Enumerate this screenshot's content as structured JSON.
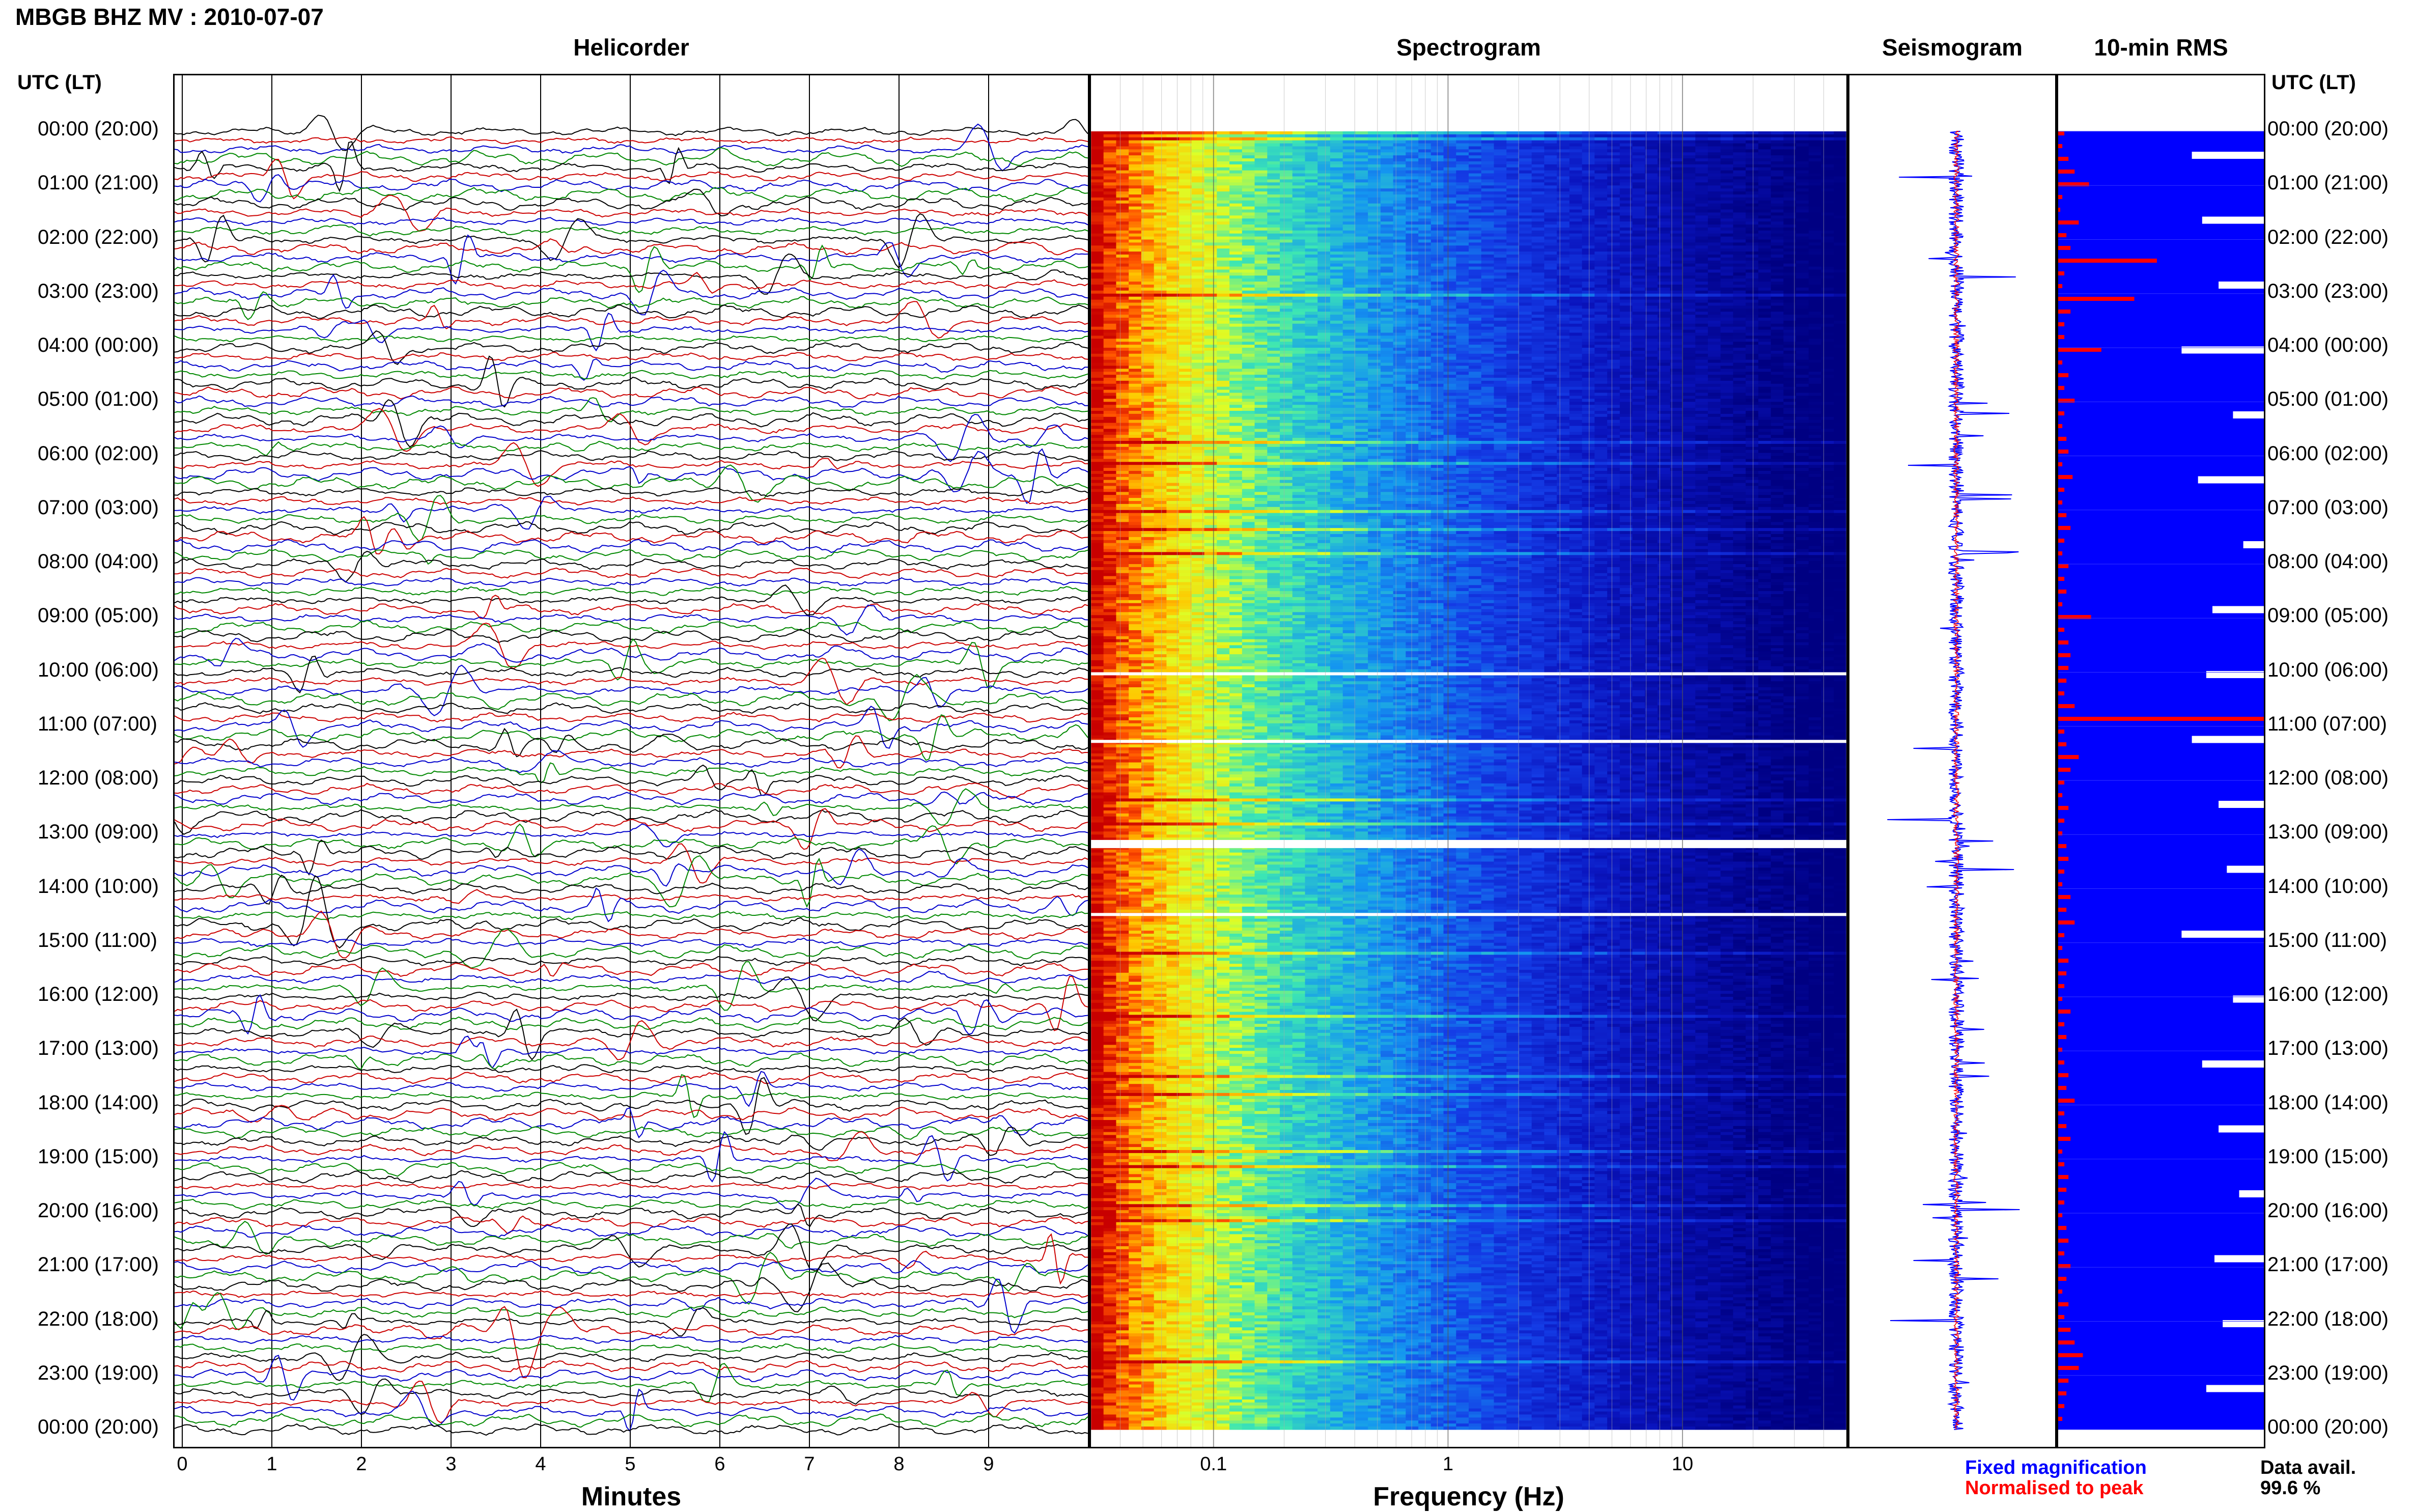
{
  "header": {
    "title": "MBGB BHZ MV : 2010-07-07"
  },
  "panels": {
    "helicorder": "Helicorder",
    "spectrogram": "Spectrogram",
    "seismogram": "Seismogram",
    "rms": "10-min RMS"
  },
  "axes": {
    "utc_header": "UTC (LT)",
    "minutes_label": "Minutes",
    "frequency_label": "Frequency (Hz)",
    "minute_ticks": [
      "0",
      "1",
      "2",
      "3",
      "4",
      "5",
      "6",
      "7",
      "8",
      "9"
    ],
    "frequency_ticks": [
      "0.1",
      "1",
      "10"
    ]
  },
  "time_labels": [
    "00:00 (20:00)",
    "01:00 (21:00)",
    "02:00 (22:00)",
    "03:00 (23:00)",
    "04:00 (00:00)",
    "05:00 (01:00)",
    "06:00 (02:00)",
    "07:00 (03:00)",
    "08:00 (04:00)",
    "09:00 (05:00)",
    "10:00 (06:00)",
    "11:00 (07:00)",
    "12:00 (08:00)",
    "13:00 (09:00)",
    "14:00 (10:00)",
    "15:00 (11:00)",
    "16:00 (12:00)",
    "17:00 (13:00)",
    "18:00 (14:00)",
    "19:00 (15:00)",
    "20:00 (16:00)",
    "21:00 (17:00)",
    "22:00 (18:00)",
    "23:00 (19:00)",
    "00:00 (20:00)"
  ],
  "legend": {
    "fixed": "Fixed magnification",
    "normalised": "Normalised to peak"
  },
  "availability": {
    "label": "Data avail.",
    "value": "99.6 %"
  },
  "colors": {
    "trace_cycle": [
      "#000000",
      "#cc0000",
      "#0000cc",
      "#008800"
    ],
    "spectro_low": "#00007f",
    "rms_bar": "#0000ff",
    "rms_peak": "#ff0000"
  },
  "rms_peak_levels": [
    0.03,
    0.02,
    0.05,
    0.08,
    0.15,
    0.02,
    0.01,
    0.1,
    0.04,
    0.06,
    0.48,
    0.03,
    0.02,
    0.37,
    0.06,
    0.03,
    0.03,
    0.21,
    0.02,
    0.05,
    0.03,
    0.08,
    0.03,
    0.02,
    0.04,
    0.05,
    0.02,
    0.07,
    0.03,
    0.02,
    0.04,
    0.06,
    0.03,
    0.02,
    0.05,
    0.03,
    0.04,
    0.02,
    0.16,
    0.03,
    0.05,
    0.06,
    0.05,
    0.04,
    0.03,
    0.08,
    1.0,
    0.03,
    0.04,
    0.1,
    0.06,
    0.03,
    0.02,
    0.05,
    0.03,
    0.02,
    0.04,
    0.05,
    0.03,
    0.02,
    0.06,
    0.04,
    0.08,
    0.03,
    0.02,
    0.05,
    0.04,
    0.03,
    0.02,
    0.06,
    0.03,
    0.04,
    0.02,
    0.03,
    0.05,
    0.04,
    0.08,
    0.03,
    0.04,
    0.06,
    0.02,
    0.03,
    0.05,
    0.04,
    0.03,
    0.02,
    0.04,
    0.05,
    0.03,
    0.06,
    0.04,
    0.02,
    0.05,
    0.03,
    0.06,
    0.08,
    0.12,
    0.1,
    0.05,
    0.04,
    0.03,
    0.02
  ],
  "rms_gap_levels": [
    0.35,
    0.3,
    0.22,
    0.4,
    0.15,
    0.32,
    0.1,
    0.25,
    0.28,
    0.35,
    0.22,
    0.18,
    0.4,
    0.15,
    0.3,
    0.22,
    0.12,
    0.24,
    0.2,
    0.28
  ]
}
